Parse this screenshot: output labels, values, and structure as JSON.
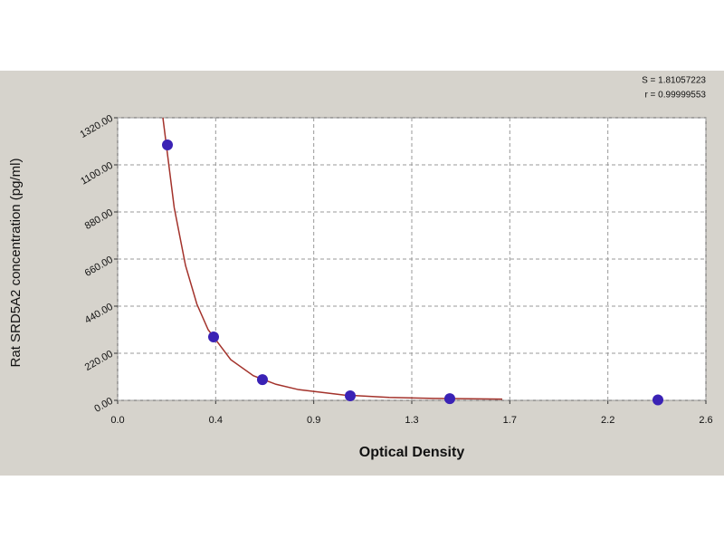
{
  "chart_data": {
    "type": "scatter",
    "x_label": "Optical Density",
    "y_label": "Rat SRD5A2 concentration (pg/ml)",
    "annotations": [
      "S = 1.81057223",
      "r = 0.99999553"
    ],
    "xlim": [
      0,
      2.6
    ],
    "ylim": [
      0,
      1320
    ],
    "xticks": [
      {
        "value": 0,
        "label": "0.0"
      },
      {
        "value": 0.4333,
        "label": "0.4"
      },
      {
        "value": 0.8667,
        "label": "0.9"
      },
      {
        "value": 1.3,
        "label": "1.3"
      },
      {
        "value": 1.7333,
        "label": "1.7"
      },
      {
        "value": 2.1667,
        "label": "2.2"
      },
      {
        "value": 2.6,
        "label": "2.6"
      }
    ],
    "yticks": [
      {
        "value": 0,
        "label": "0.00"
      },
      {
        "value": 220,
        "label": "220.00"
      },
      {
        "value": 440,
        "label": "440.00"
      },
      {
        "value": 660,
        "label": "660.00"
      },
      {
        "value": 880,
        "label": "880.00"
      },
      {
        "value": 1100,
        "label": "1100.00"
      },
      {
        "value": 1320,
        "label": "1320.00"
      }
    ],
    "grid": true,
    "series": [
      {
        "type": "line",
        "color": "#a3322b",
        "x": [
          0.2,
          0.25,
          0.3,
          0.35,
          0.4,
          0.5,
          0.6,
          0.7,
          0.8,
          1.0,
          1.2,
          1.4,
          1.7
        ],
        "values": [
          1320,
          900,
          630,
          450,
          330,
          190,
          115,
          75,
          50,
          25,
          14,
          9,
          6
        ]
      },
      {
        "type": "scatter",
        "color": "#3a22b5",
        "x": [
          0.22,
          0.424,
          0.64,
          1.028,
          1.468,
          2.388
        ],
        "values": [
          1193,
          296,
          97,
          21,
          8,
          2
        ]
      }
    ]
  }
}
